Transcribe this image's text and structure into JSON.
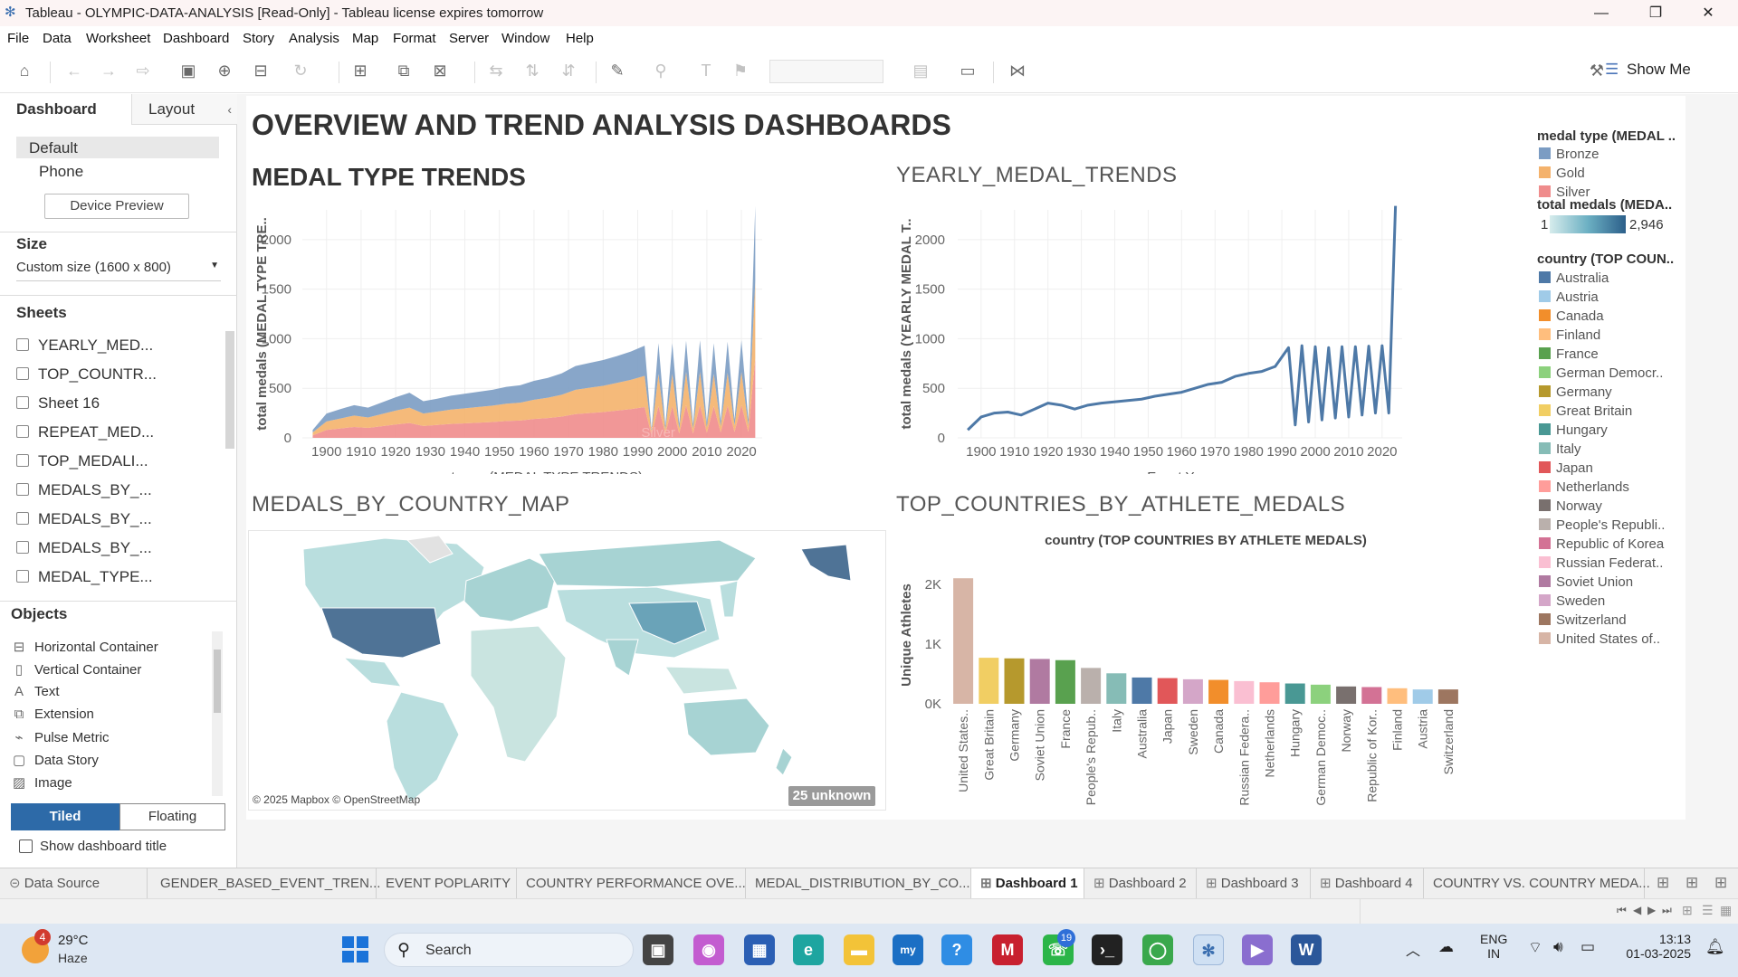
{
  "window": {
    "title": "Tableau - OLYMPIC-DATA-ANALYSIS [Read-Only] - Tableau license expires tomorrow",
    "minimize": "—",
    "restore": "❐",
    "close": "✕"
  },
  "menu": [
    "File",
    "Data",
    "Worksheet",
    "Dashboard",
    "Story",
    "Analysis",
    "Map",
    "Format",
    "Server",
    "Window",
    "Help"
  ],
  "toolbar": {
    "show_me": "Show Me"
  },
  "left_pane": {
    "tabs": [
      "Dashboard",
      "Layout"
    ],
    "device_options": [
      "Default",
      "Phone"
    ],
    "device_preview": "Device Preview",
    "size_label": "Size",
    "size_value": "Custom size (1600 x 800)",
    "sheets_label": "Sheets",
    "sheets": [
      "YEARLY_MED...",
      "TOP_COUNTR...",
      "Sheet 16",
      "REPEAT_MED...",
      "TOP_MEDALI...",
      "MEDALS_BY_...",
      "MEDALS_BY_...",
      "MEDALS_BY_...",
      "MEDAL_TYPE..."
    ],
    "objects_label": "Objects",
    "objects": [
      "Horizontal Container",
      "Vertical Container",
      "Text",
      "Extension",
      "Pulse Metric",
      "Data Story",
      "Image"
    ],
    "tiled": "Tiled",
    "floating": "Floating",
    "show_title": "Show dashboard title"
  },
  "dashboard": {
    "title": "OVERVIEW AND TREND ANALYSIS DASHBOARDS",
    "medal_trends_title": "MEDAL TYPE TRENDS",
    "yearly_title": "YEARLY_MEDAL_TRENDS",
    "map_title": "MEDALS_BY_COUNTRY_MAP",
    "top_title": "TOP_COUNTRIES_BY_ATHLETE_MEDALS",
    "map_credit": "© 2025 Mapbox © OpenStreetMap",
    "unknown_badge": "25 unknown",
    "silver_label": "Silver"
  },
  "legends": {
    "medal_type_title": "medal type (MEDAL ..",
    "medal_types": [
      {
        "name": "Bronze",
        "color": "#7b9cc3"
      },
      {
        "name": "Gold",
        "color": "#f4b26c"
      },
      {
        "name": "Silver",
        "color": "#ef8c8c"
      }
    ],
    "total_title": "total medals (MEDA..",
    "total_min": "1",
    "total_max": "2,946",
    "country_title": "country (TOP COUN..",
    "countries": [
      {
        "name": "Australia",
        "color": "#4e79a7"
      },
      {
        "name": "Austria",
        "color": "#a0cbe8"
      },
      {
        "name": "Canada",
        "color": "#f28e2b"
      },
      {
        "name": "Finland",
        "color": "#ffbe7d"
      },
      {
        "name": "France",
        "color": "#59a14f"
      },
      {
        "name": "German Democr..",
        "color": "#8cd17d"
      },
      {
        "name": "Germany",
        "color": "#b6992d"
      },
      {
        "name": "Great Britain",
        "color": "#f1ce63"
      },
      {
        "name": "Hungary",
        "color": "#499894"
      },
      {
        "name": "Italy",
        "color": "#86bcb6"
      },
      {
        "name": "Japan",
        "color": "#e15759"
      },
      {
        "name": "Netherlands",
        "color": "#ff9d9a"
      },
      {
        "name": "Norway",
        "color": "#79706e"
      },
      {
        "name": "People's Republi..",
        "color": "#bab0ac"
      },
      {
        "name": "Republic of Korea",
        "color": "#d37295"
      },
      {
        "name": "Russian Federat..",
        "color": "#fabfd2"
      },
      {
        "name": "Soviet Union",
        "color": "#b07aa1"
      },
      {
        "name": "Sweden",
        "color": "#d4a6c8"
      },
      {
        "name": "Switzerland",
        "color": "#9d7660"
      },
      {
        "name": "United States of..",
        "color": "#d7b5a6"
      }
    ]
  },
  "chart_data": [
    {
      "type": "area",
      "title": "MEDAL TYPE TRENDS",
      "xlabel": "event year (MEDAL TYPE TRENDS)",
      "ylabel": "total medals (MEDAL TYPE TRE..",
      "ylim": [
        0,
        2300
      ],
      "yticks": [
        0,
        500,
        1000,
        1500,
        2000
      ],
      "xticks": [
        1900,
        1910,
        1920,
        1930,
        1940,
        1950,
        1960,
        1970,
        1980,
        1990,
        2000,
        2010,
        2020
      ],
      "x": [
        1896,
        1900,
        1904,
        1908,
        1912,
        1920,
        1924,
        1928,
        1932,
        1936,
        1948,
        1952,
        1956,
        1960,
        1964,
        1968,
        1972,
        1976,
        1980,
        1984,
        1988,
        1992,
        1994,
        1996,
        1998,
        2000,
        2002,
        2004,
        2006,
        2008,
        2010,
        2012,
        2014,
        2016,
        2018,
        2020,
        2022,
        2024
      ],
      "series": [
        {
          "name": "Silver",
          "values": [
            25,
            80,
            95,
            110,
            100,
            135,
            150,
            120,
            130,
            140,
            160,
            170,
            175,
            190,
            200,
            215,
            240,
            250,
            260,
            275,
            290,
            310,
            25,
            320,
            40,
            320,
            45,
            330,
            45,
            330,
            50,
            320,
            55,
            325,
            60,
            330,
            60,
            800
          ]
        },
        {
          "name": "Gold",
          "values": [
            30,
            85,
            100,
            115,
            105,
            140,
            155,
            125,
            135,
            145,
            165,
            175,
            180,
            195,
            205,
            220,
            245,
            255,
            265,
            280,
            295,
            315,
            30,
            325,
            45,
            325,
            50,
            335,
            50,
            335,
            55,
            325,
            60,
            330,
            65,
            335,
            65,
            780
          ]
        },
        {
          "name": "Bronze",
          "values": [
            25,
            80,
            95,
            105,
            100,
            135,
            150,
            125,
            130,
            140,
            160,
            170,
            175,
            190,
            200,
            215,
            240,
            250,
            260,
            270,
            285,
            305,
            25,
            310,
            40,
            310,
            45,
            315,
            45,
            320,
            50,
            310,
            55,
            315,
            60,
            320,
            60,
            760
          ]
        }
      ]
    },
    {
      "type": "line",
      "title": "YEARLY_MEDAL_TRENDS",
      "xlabel": "Event Year",
      "ylabel": "total medals (YEARLY MEDAL T..",
      "ylim": [
        0,
        2300
      ],
      "yticks": [
        0,
        500,
        1000,
        1500,
        2000
      ],
      "xticks": [
        1900,
        1910,
        1920,
        1930,
        1940,
        1950,
        1960,
        1970,
        1980,
        1990,
        2000,
        2010,
        2020
      ],
      "x": [
        1896,
        1900,
        1904,
        1908,
        1912,
        1920,
        1924,
        1928,
        1932,
        1936,
        1948,
        1952,
        1956,
        1960,
        1964,
        1968,
        1972,
        1976,
        1980,
        1984,
        1988,
        1992,
        1994,
        1996,
        1998,
        2000,
        2002,
        2004,
        2006,
        2008,
        2010,
        2012,
        2014,
        2016,
        2018,
        2020,
        2022,
        2024
      ],
      "values": [
        80,
        210,
        250,
        260,
        230,
        350,
        330,
        290,
        330,
        350,
        390,
        420,
        440,
        460,
        500,
        540,
        560,
        620,
        650,
        670,
        720,
        910,
        130,
        930,
        160,
        920,
        180,
        910,
        200,
        920,
        210,
        920,
        230,
        925,
        250,
        930,
        250,
        2340
      ]
    },
    {
      "type": "bar",
      "title": "country (TOP COUNTRIES BY ATHLETE MEDALS)",
      "ylabel": "Unique Athletes",
      "ylim": [
        0,
        2300
      ],
      "yticks": [
        {
          "value": 0,
          "label": "0K"
        },
        {
          "value": 1000,
          "label": "1K"
        },
        {
          "value": 2000,
          "label": "2K"
        }
      ],
      "categories": [
        "United States..",
        "Great Britain",
        "Germany",
        "Soviet Union",
        "France",
        "People's Repub..",
        "Italy",
        "Australia",
        "Japan",
        "Sweden",
        "Canada",
        "Russian Federa..",
        "Netherlands",
        "Hungary",
        "German Democ..",
        "Norway",
        "Republic of Kor..",
        "Finland",
        "Austria",
        "Switzerland"
      ],
      "values": [
        2100,
        770,
        760,
        750,
        730,
        600,
        510,
        440,
        430,
        410,
        400,
        380,
        360,
        340,
        320,
        290,
        280,
        260,
        240,
        240
      ],
      "colors": [
        "#d7b5a6",
        "#f1ce63",
        "#b6992d",
        "#b07aa1",
        "#59a14f",
        "#bab0ac",
        "#86bcb6",
        "#4e79a7",
        "#e15759",
        "#d4a6c8",
        "#f28e2b",
        "#fabfd2",
        "#ff9d9a",
        "#499894",
        "#8cd17d",
        "#79706e",
        "#d37295",
        "#ffbe7d",
        "#a0cbe8",
        "#9d7660"
      ]
    }
  ],
  "sheet_tabs": [
    {
      "label": "Data Source",
      "icon": "database-icon"
    },
    {
      "label": "GENDER_BASED_EVENT_TREN..."
    },
    {
      "label": "EVENT POPLARITY"
    },
    {
      "label": "COUNTRY PERFORMANCE OVE..."
    },
    {
      "label": "MEDAL_DISTRIBUTION_BY_CO..."
    },
    {
      "label": "Dashboard 1",
      "active": true
    },
    {
      "label": "Dashboard 2"
    },
    {
      "label": "Dashboard 3"
    },
    {
      "label": "Dashboard 4"
    },
    {
      "label": "COUNTRY VS. COUNTRY MEDA..."
    }
  ],
  "taskbar": {
    "weather_temp": "29°C",
    "weather_desc": "Haze",
    "weather_badge": "4",
    "search": "Search",
    "whatsapp_badge": "19",
    "lang_top": "ENG",
    "lang_bottom": "IN",
    "time": "13:13",
    "date": "01-03-2025"
  }
}
